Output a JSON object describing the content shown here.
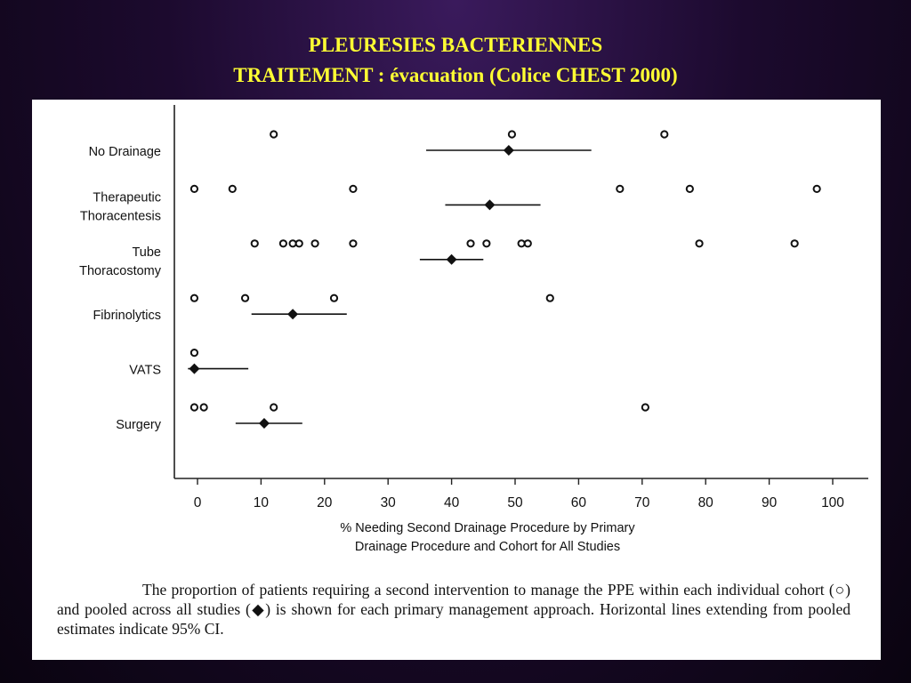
{
  "slide": {
    "title_line1": "PLEURESIES BACTERIENNES",
    "title_line2": "TRAITEMENT : évacuation (Colice CHEST 2000)"
  },
  "caption": "The proportion of patients requiring a second intervention to manage the PPE within each individual cohort (○) and pooled across all studies (◆) is shown for each primary management approach. Horizontal lines extending from pooled estimates indicate 95% CI.",
  "chart_data": {
    "type": "scatter",
    "xlabel_line1": "% Needing Second Drainage Procedure by Primary",
    "xlabel_line2": "Drainage Procedure and Cohort for All Studies",
    "xlim": [
      0,
      100
    ],
    "xticks": [
      0,
      10,
      20,
      30,
      40,
      50,
      60,
      70,
      80,
      90,
      100
    ],
    "grid": false,
    "categories": [
      {
        "label_lines": [
          "No Drainage"
        ],
        "cohorts": [
          12,
          49.5,
          73.5
        ],
        "pooled": 49,
        "ci": [
          36,
          62
        ]
      },
      {
        "label_lines": [
          "Therapeutic",
          "Thoracentesis"
        ],
        "cohorts": [
          -0.5,
          5.5,
          24.5,
          66.5,
          77.5,
          97.5
        ],
        "pooled": 46,
        "ci": [
          39,
          54
        ]
      },
      {
        "label_lines": [
          "Tube",
          "Thoracostomy"
        ],
        "cohorts": [
          9,
          13.5,
          15,
          16,
          18.5,
          24.5,
          43,
          45.5,
          51,
          52,
          79,
          94
        ],
        "pooled": 40,
        "ci": [
          35,
          45
        ]
      },
      {
        "label_lines": [
          "Fibrinolytics"
        ],
        "cohorts": [
          -0.5,
          7.5,
          21.5,
          55.5
        ],
        "pooled": 15,
        "ci": [
          8.5,
          23.5
        ]
      },
      {
        "label_lines": [
          "VATS"
        ],
        "cohorts": [
          -0.5
        ],
        "pooled": -0.5,
        "ci": [
          -1.5,
          8
        ]
      },
      {
        "label_lines": [
          "Surgery"
        ],
        "cohorts": [
          -0.5,
          1,
          12,
          70.5
        ],
        "pooled": 10.5,
        "ci": [
          6,
          16.5
        ]
      }
    ]
  }
}
